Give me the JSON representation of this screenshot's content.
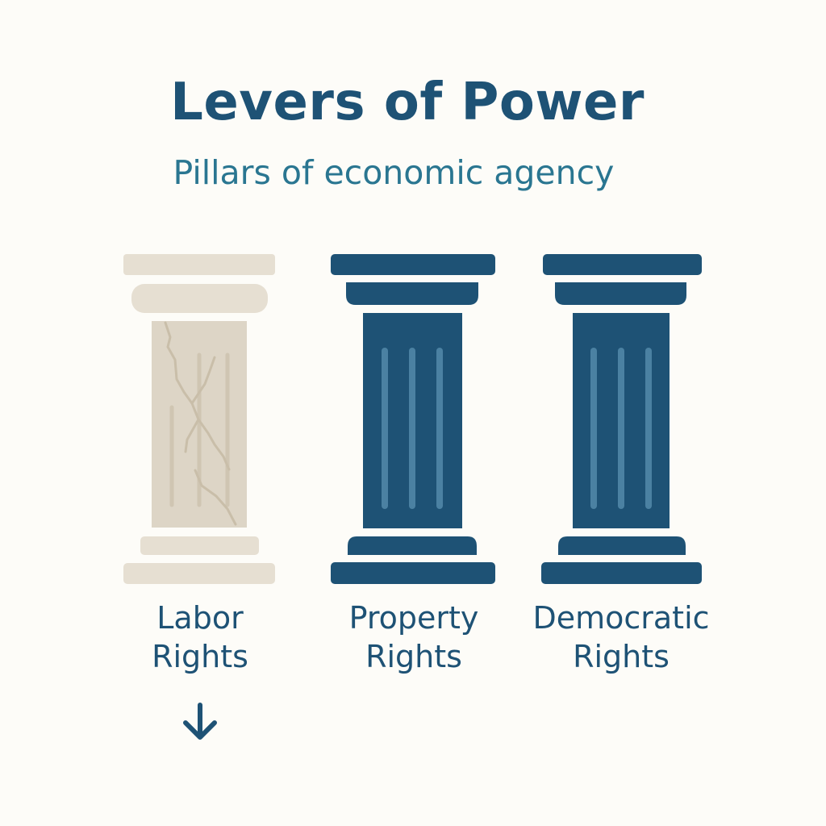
{
  "header": {
    "title": "Levers of Power",
    "subtitle": "Pillars of economic agency"
  },
  "colors": {
    "primary": "#1e5275",
    "subtitle": "#2a7691",
    "fluting_active": "#4b81a2",
    "faded_pillar": "#e6dfd2",
    "faded_shaft": "#ddd5c6",
    "faded_crack": "#c9bea9",
    "background": "#fdfcf8"
  },
  "pillars": [
    {
      "label_line1": "Labor",
      "label_line2": "Rights",
      "state": "cracked-faded",
      "indicator": "down-arrow-icon"
    },
    {
      "label_line1": "Property",
      "label_line2": "Rights",
      "state": "solid"
    },
    {
      "label_line1": "Democratic",
      "label_line2": "Rights",
      "state": "solid"
    }
  ]
}
